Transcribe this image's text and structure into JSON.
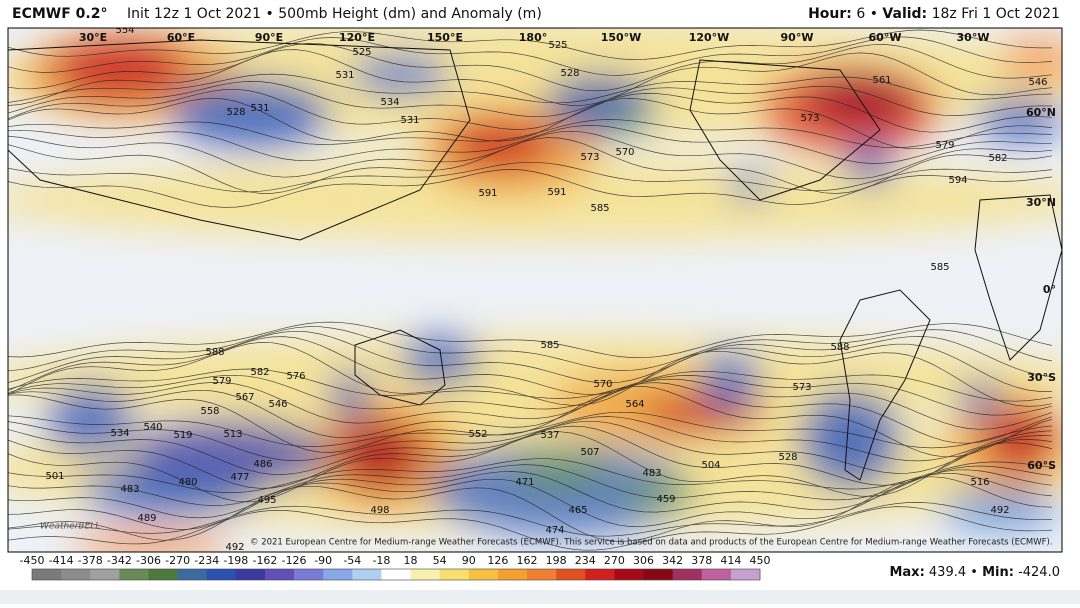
{
  "header": {
    "model": "ECMWF 0.2°",
    "run": "Init 12z 1 Oct 2021 • 500mb Height (dm) and Anomaly (m)",
    "hour_label": "Hour:",
    "hour": "6",
    "separator": "•",
    "valid_label": "Valid:",
    "valid": "18z Fri 1 Oct 2021"
  },
  "map": {
    "longitudes": [
      "30°E",
      "60°E",
      "90°E",
      "120°E",
      "150°E",
      "180°",
      "150°W",
      "120°W",
      "90°W",
      "60°W",
      "30°W"
    ],
    "latitudes": [
      "60°N",
      "30°N",
      "0°",
      "30°S",
      "60°S"
    ],
    "contour_labels": [
      "554",
      "525",
      "525",
      "531",
      "528",
      "531",
      "534",
      "531",
      "528",
      "573",
      "570",
      "591",
      "591",
      "585",
      "561",
      "573",
      "594",
      "579",
      "582",
      "546",
      "585",
      "588",
      "579",
      "582",
      "576",
      "567",
      "558",
      "546",
      "540",
      "519",
      "513",
      "534",
      "486",
      "480",
      "477",
      "483",
      "489",
      "498",
      "495",
      "492",
      "501",
      "585",
      "588",
      "573",
      "570",
      "564",
      "552",
      "537",
      "507",
      "471",
      "483",
      "459",
      "465",
      "474",
      "504",
      "528",
      "516",
      "492"
    ],
    "watermark": "WeatherBELL",
    "copyright": "© 2021 European Centre for Medium-range Weather Forecasts (ECMWF). This service is based on data and products of the European Centre for Medium-range Weather Forecasts (ECMWF)."
  },
  "colorbar": {
    "ticks": [
      -450,
      -414,
      -378,
      -342,
      -306,
      -270,
      -234,
      -198,
      -162,
      -126,
      -90,
      -54,
      -18,
      18,
      54,
      90,
      126,
      162,
      198,
      234,
      270,
      306,
      342,
      378,
      414,
      450
    ]
  },
  "stats": {
    "max_label": "Max:",
    "max": "439.4",
    "separator": "•",
    "min_label": "Min:",
    "min": "-424.0"
  }
}
